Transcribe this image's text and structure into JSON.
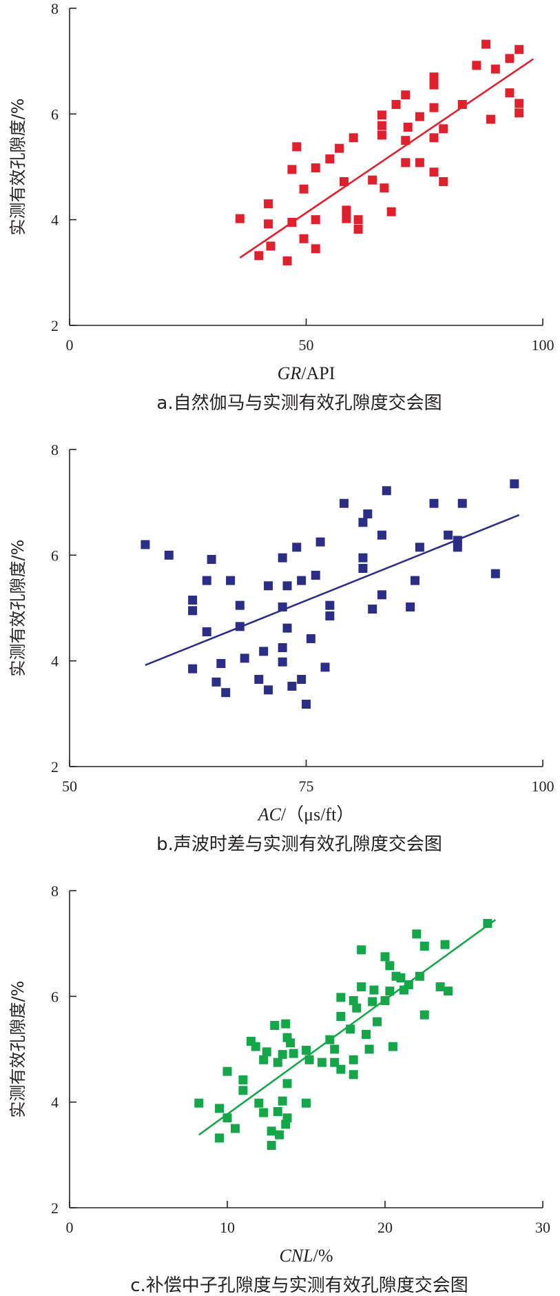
{
  "chart_data": [
    {
      "type": "scatter",
      "ylabel": "实测有效孔隙度/%",
      "xlabel_var": "GR",
      "xlabel_unit": "/API",
      "caption": "a.自然伽马与实测有效孔隙度交会图",
      "xlim": [
        0,
        100
      ],
      "ylim": [
        2,
        8
      ],
      "xticks": [
        "0",
        "50",
        "100"
      ],
      "yticks": [
        "2",
        "4",
        "6",
        "8"
      ],
      "color": "#e0202c",
      "trendline": [
        [
          36,
          3.28
        ],
        [
          98,
          7.04
        ]
      ],
      "points": [
        [
          36,
          4.02
        ],
        [
          40,
          3.32
        ],
        [
          42,
          4.3
        ],
        [
          42,
          3.92
        ],
        [
          42.5,
          3.5
        ],
        [
          46,
          3.22
        ],
        [
          47,
          4.95
        ],
        [
          47,
          3.95
        ],
        [
          48,
          5.38
        ],
        [
          49.5,
          4.58
        ],
        [
          49.5,
          3.64
        ],
        [
          52,
          4.98
        ],
        [
          52,
          4.0
        ],
        [
          52,
          3.45
        ],
        [
          55,
          5.15
        ],
        [
          57,
          5.35
        ],
        [
          58,
          4.72
        ],
        [
          58.5,
          4.18
        ],
        [
          58.5,
          4.02
        ],
        [
          60,
          5.55
        ],
        [
          61,
          4.0
        ],
        [
          61,
          3.82
        ],
        [
          64,
          4.75
        ],
        [
          66,
          5.98
        ],
        [
          66,
          5.78
        ],
        [
          66,
          5.6
        ],
        [
          66.5,
          4.6
        ],
        [
          68,
          4.15
        ],
        [
          69,
          6.18
        ],
        [
          71,
          6.36
        ],
        [
          71,
          5.5
        ],
        [
          71.5,
          5.75
        ],
        [
          71,
          5.08
        ],
        [
          74,
          5.95
        ],
        [
          74,
          5.08
        ],
        [
          77,
          6.7
        ],
        [
          77,
          6.55
        ],
        [
          77,
          6.12
        ],
        [
          77,
          5.55
        ],
        [
          77,
          4.9
        ],
        [
          79,
          5.72
        ],
        [
          79,
          4.72
        ],
        [
          83,
          6.18
        ],
        [
          86,
          6.92
        ],
        [
          88,
          7.32
        ],
        [
          89,
          5.9
        ],
        [
          90,
          6.85
        ],
        [
          93,
          6.4
        ],
        [
          93,
          7.05
        ],
        [
          95,
          7.22
        ],
        [
          95,
          6.2
        ],
        [
          95,
          6.02
        ]
      ]
    },
    {
      "type": "scatter",
      "ylabel": "实测有效孔隙度/%",
      "xlabel_var": "AC",
      "xlabel_unit": "/（μs/ft）",
      "caption": "b.声波时差与实测有效孔隙度交会图",
      "xlim": [
        50,
        100
      ],
      "ylim": [
        2,
        8
      ],
      "xticks": [
        "50",
        "75",
        "100"
      ],
      "yticks": [
        "2",
        "4",
        "6",
        "8"
      ],
      "color": "#2b2e86",
      "trendline": [
        [
          58,
          3.92
        ],
        [
          97.5,
          6.76
        ]
      ],
      "points": [
        [
          58,
          6.2
        ],
        [
          60.5,
          6.0
        ],
        [
          63,
          5.15
        ],
        [
          63,
          4.95
        ],
        [
          63,
          3.85
        ],
        [
          64.5,
          5.52
        ],
        [
          64.5,
          4.55
        ],
        [
          65,
          5.92
        ],
        [
          65.5,
          3.6
        ],
        [
          66,
          3.95
        ],
        [
          66.5,
          3.4
        ],
        [
          67,
          5.52
        ],
        [
          68,
          4.65
        ],
        [
          68,
          5.05
        ],
        [
          68.5,
          4.05
        ],
        [
          70,
          3.65
        ],
        [
          70.5,
          4.18
        ],
        [
          71,
          5.42
        ],
        [
          71,
          3.45
        ],
        [
          72.5,
          5.95
        ],
        [
          72.5,
          5.02
        ],
        [
          72.5,
          4.25
        ],
        [
          72.5,
          3.98
        ],
        [
          73,
          4.62
        ],
        [
          73,
          5.42
        ],
        [
          73.5,
          3.52
        ],
        [
          74,
          6.15
        ],
        [
          74.5,
          5.52
        ],
        [
          74.5,
          3.65
        ],
        [
          75,
          3.18
        ],
        [
          75.5,
          4.42
        ],
        [
          76,
          5.62
        ],
        [
          76.5,
          6.25
        ],
        [
          77,
          3.88
        ],
        [
          77.5,
          5.05
        ],
        [
          77.5,
          4.85
        ],
        [
          79,
          6.98
        ],
        [
          81,
          6.62
        ],
        [
          81.5,
          6.78
        ],
        [
          81,
          5.95
        ],
        [
          81,
          5.75
        ],
        [
          82,
          4.98
        ],
        [
          83,
          6.38
        ],
        [
          83,
          5.25
        ],
        [
          83.5,
          7.22
        ],
        [
          86,
          5.02
        ],
        [
          86.5,
          5.52
        ],
        [
          87,
          6.15
        ],
        [
          88.5,
          6.98
        ],
        [
          90,
          6.38
        ],
        [
          91,
          6.15
        ],
        [
          91,
          6.28
        ],
        [
          91.5,
          6.98
        ],
        [
          95,
          5.65
        ],
        [
          97,
          7.35
        ]
      ]
    },
    {
      "type": "scatter",
      "ylabel": "实测有效孔隙度/%",
      "xlabel_var": "CNL",
      "xlabel_unit": "/%",
      "caption": "c.补偿中子孔隙度与实测有效孔隙度交会图",
      "xlim": [
        0,
        30
      ],
      "ylim": [
        2,
        8
      ],
      "xticks": [
        "0",
        "10",
        "20",
        "30"
      ],
      "yticks": [
        "2",
        "4",
        "6",
        "8"
      ],
      "color": "#15a64a",
      "trendline": [
        [
          8.2,
          3.38
        ],
        [
          27,
          7.45
        ]
      ],
      "points": [
        [
          8.2,
          3.98
        ],
        [
          9.5,
          3.32
        ],
        [
          9.5,
          3.88
        ],
        [
          10,
          4.58
        ],
        [
          10,
          3.7
        ],
        [
          10.5,
          3.5
        ],
        [
          11,
          4.42
        ],
        [
          11,
          4.22
        ],
        [
          11.5,
          5.15
        ],
        [
          11.8,
          5.05
        ],
        [
          12,
          3.98
        ],
        [
          12.5,
          4.95
        ],
        [
          12.3,
          4.8
        ],
        [
          12.3,
          3.8
        ],
        [
          12.8,
          3.45
        ],
        [
          12.8,
          3.18
        ],
        [
          13,
          5.45
        ],
        [
          13.2,
          4.75
        ],
        [
          13.2,
          3.82
        ],
        [
          13.3,
          3.38
        ],
        [
          13.5,
          4.9
        ],
        [
          13.5,
          4.02
        ],
        [
          13.7,
          5.48
        ],
        [
          13.8,
          5.22
        ],
        [
          13.7,
          3.58
        ],
        [
          13.8,
          4.35
        ],
        [
          13.8,
          3.7
        ],
        [
          14,
          5.12
        ],
        [
          14.2,
          4.92
        ],
        [
          15,
          4.98
        ],
        [
          15,
          3.98
        ],
        [
          15.2,
          4.8
        ],
        [
          16,
          4.75
        ],
        [
          16.5,
          5.18
        ],
        [
          16.8,
          5.0
        ],
        [
          16.8,
          4.75
        ],
        [
          17.2,
          5.98
        ],
        [
          17.2,
          5.62
        ],
        [
          17.2,
          4.62
        ],
        [
          17.8,
          5.38
        ],
        [
          18,
          5.92
        ],
        [
          18,
          4.8
        ],
        [
          18.2,
          5.78
        ],
        [
          18,
          4.52
        ],
        [
          18.5,
          6.18
        ],
        [
          18.5,
          6.88
        ],
        [
          18.8,
          5.28
        ],
        [
          19,
          5.0
        ],
        [
          19.2,
          5.9
        ],
        [
          19.3,
          6.12
        ],
        [
          19.5,
          5.52
        ],
        [
          20,
          5.92
        ],
        [
          20,
          6.75
        ],
        [
          20.3,
          6.1
        ],
        [
          20.3,
          6.58
        ],
        [
          20.5,
          5.05
        ],
        [
          20.7,
          6.38
        ],
        [
          21,
          6.35
        ],
        [
          21.2,
          6.12
        ],
        [
          21.5,
          6.22
        ],
        [
          22,
          7.18
        ],
        [
          22.2,
          6.38
        ],
        [
          22.5,
          6.95
        ],
        [
          22.5,
          5.65
        ],
        [
          23.5,
          6.18
        ],
        [
          23.8,
          6.98
        ],
        [
          24,
          6.1
        ],
        [
          26.5,
          7.38
        ]
      ]
    }
  ]
}
